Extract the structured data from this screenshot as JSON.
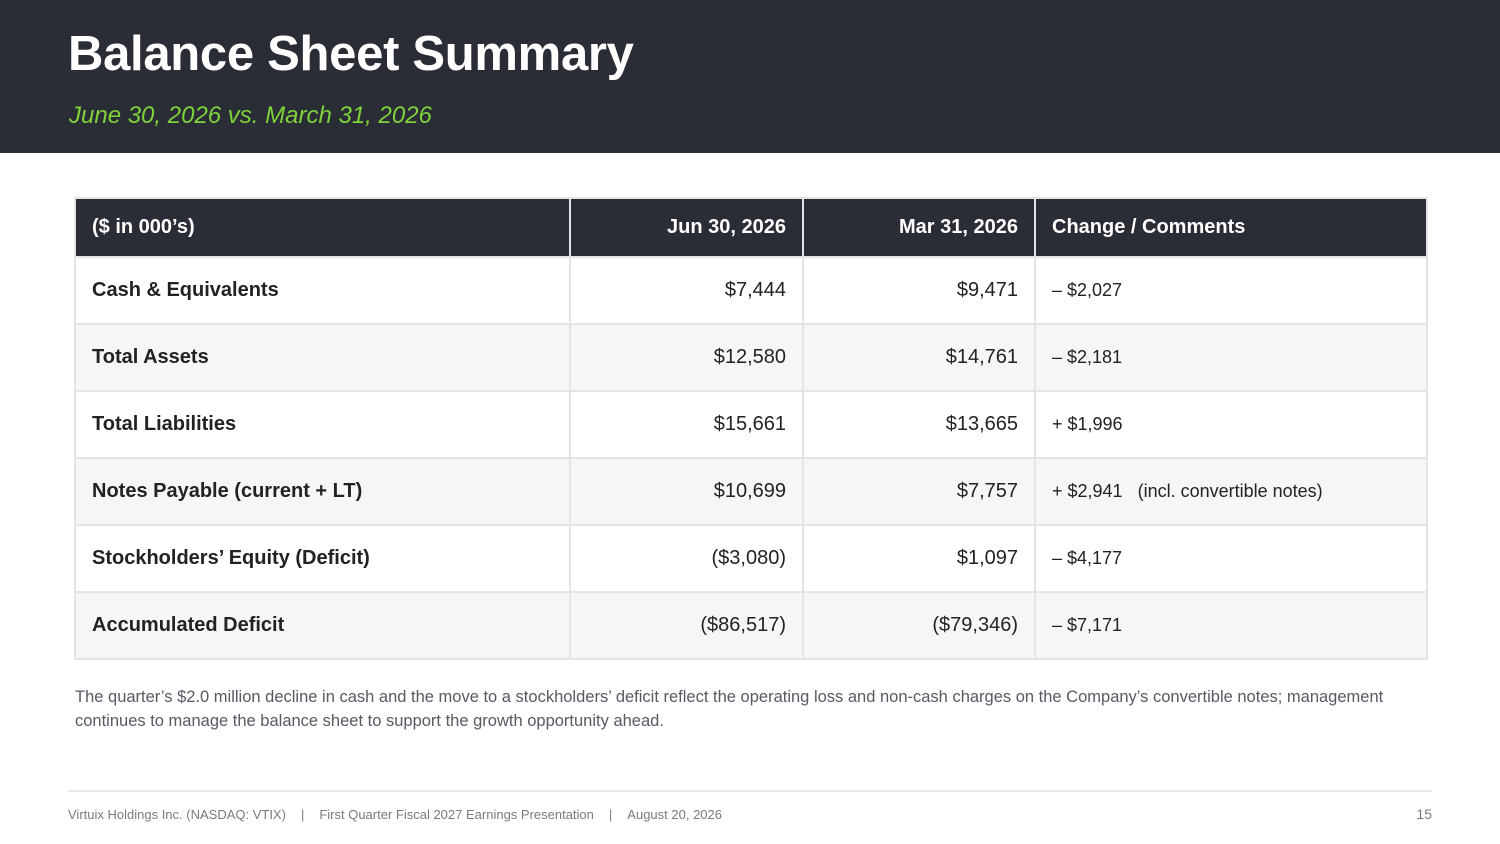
{
  "header": {
    "title": "Balance Sheet Summary",
    "subtitle": "June 30, 2026 vs. March 31, 2026"
  },
  "table": {
    "columns": [
      "($ in 000’s)",
      "Jun 30, 2026",
      "Mar 31, 2026",
      "Change / Comments"
    ],
    "rows": [
      {
        "label": "Cash & Equivalents",
        "jun": "$7,444",
        "mar": "$9,471",
        "change": "– $2,027"
      },
      {
        "label": "Total Assets",
        "jun": "$12,580",
        "mar": "$14,761",
        "change": "– $2,181"
      },
      {
        "label": "Total Liabilities",
        "jun": "$15,661",
        "mar": "$13,665",
        "change": "+ $1,996"
      },
      {
        "label": "Notes Payable (current + LT)",
        "jun": "$10,699",
        "mar": "$7,757",
        "change": "+ $2,941   (incl. convertible notes)"
      },
      {
        "label": "Stockholders’ Equity (Deficit)",
        "jun": "($3,080)",
        "mar": "$1,097",
        "change": "– $4,177"
      },
      {
        "label": "Accumulated Deficit",
        "jun": "($86,517)",
        "mar": "($79,346)",
        "change": "– $7,171"
      }
    ]
  },
  "note": "The quarter’s $2.0 million decline in cash and the move to a stockholders’ deficit reflect the operating loss and non-cash charges on the Company’s convertible notes; management continues to manage the balance sheet to support the growth opportunity ahead.",
  "footer": {
    "company": "Virtuix Holdings Inc. (NASDAQ: VTIX)",
    "separator": "|",
    "presentation": "First Quarter Fiscal 2027 Earnings Presentation",
    "date": "August 20, 2026",
    "page": "15"
  },
  "colors": {
    "header_bg": "#2a2d35",
    "subtitle": "#7ed23a",
    "change_text": "#c00000"
  }
}
